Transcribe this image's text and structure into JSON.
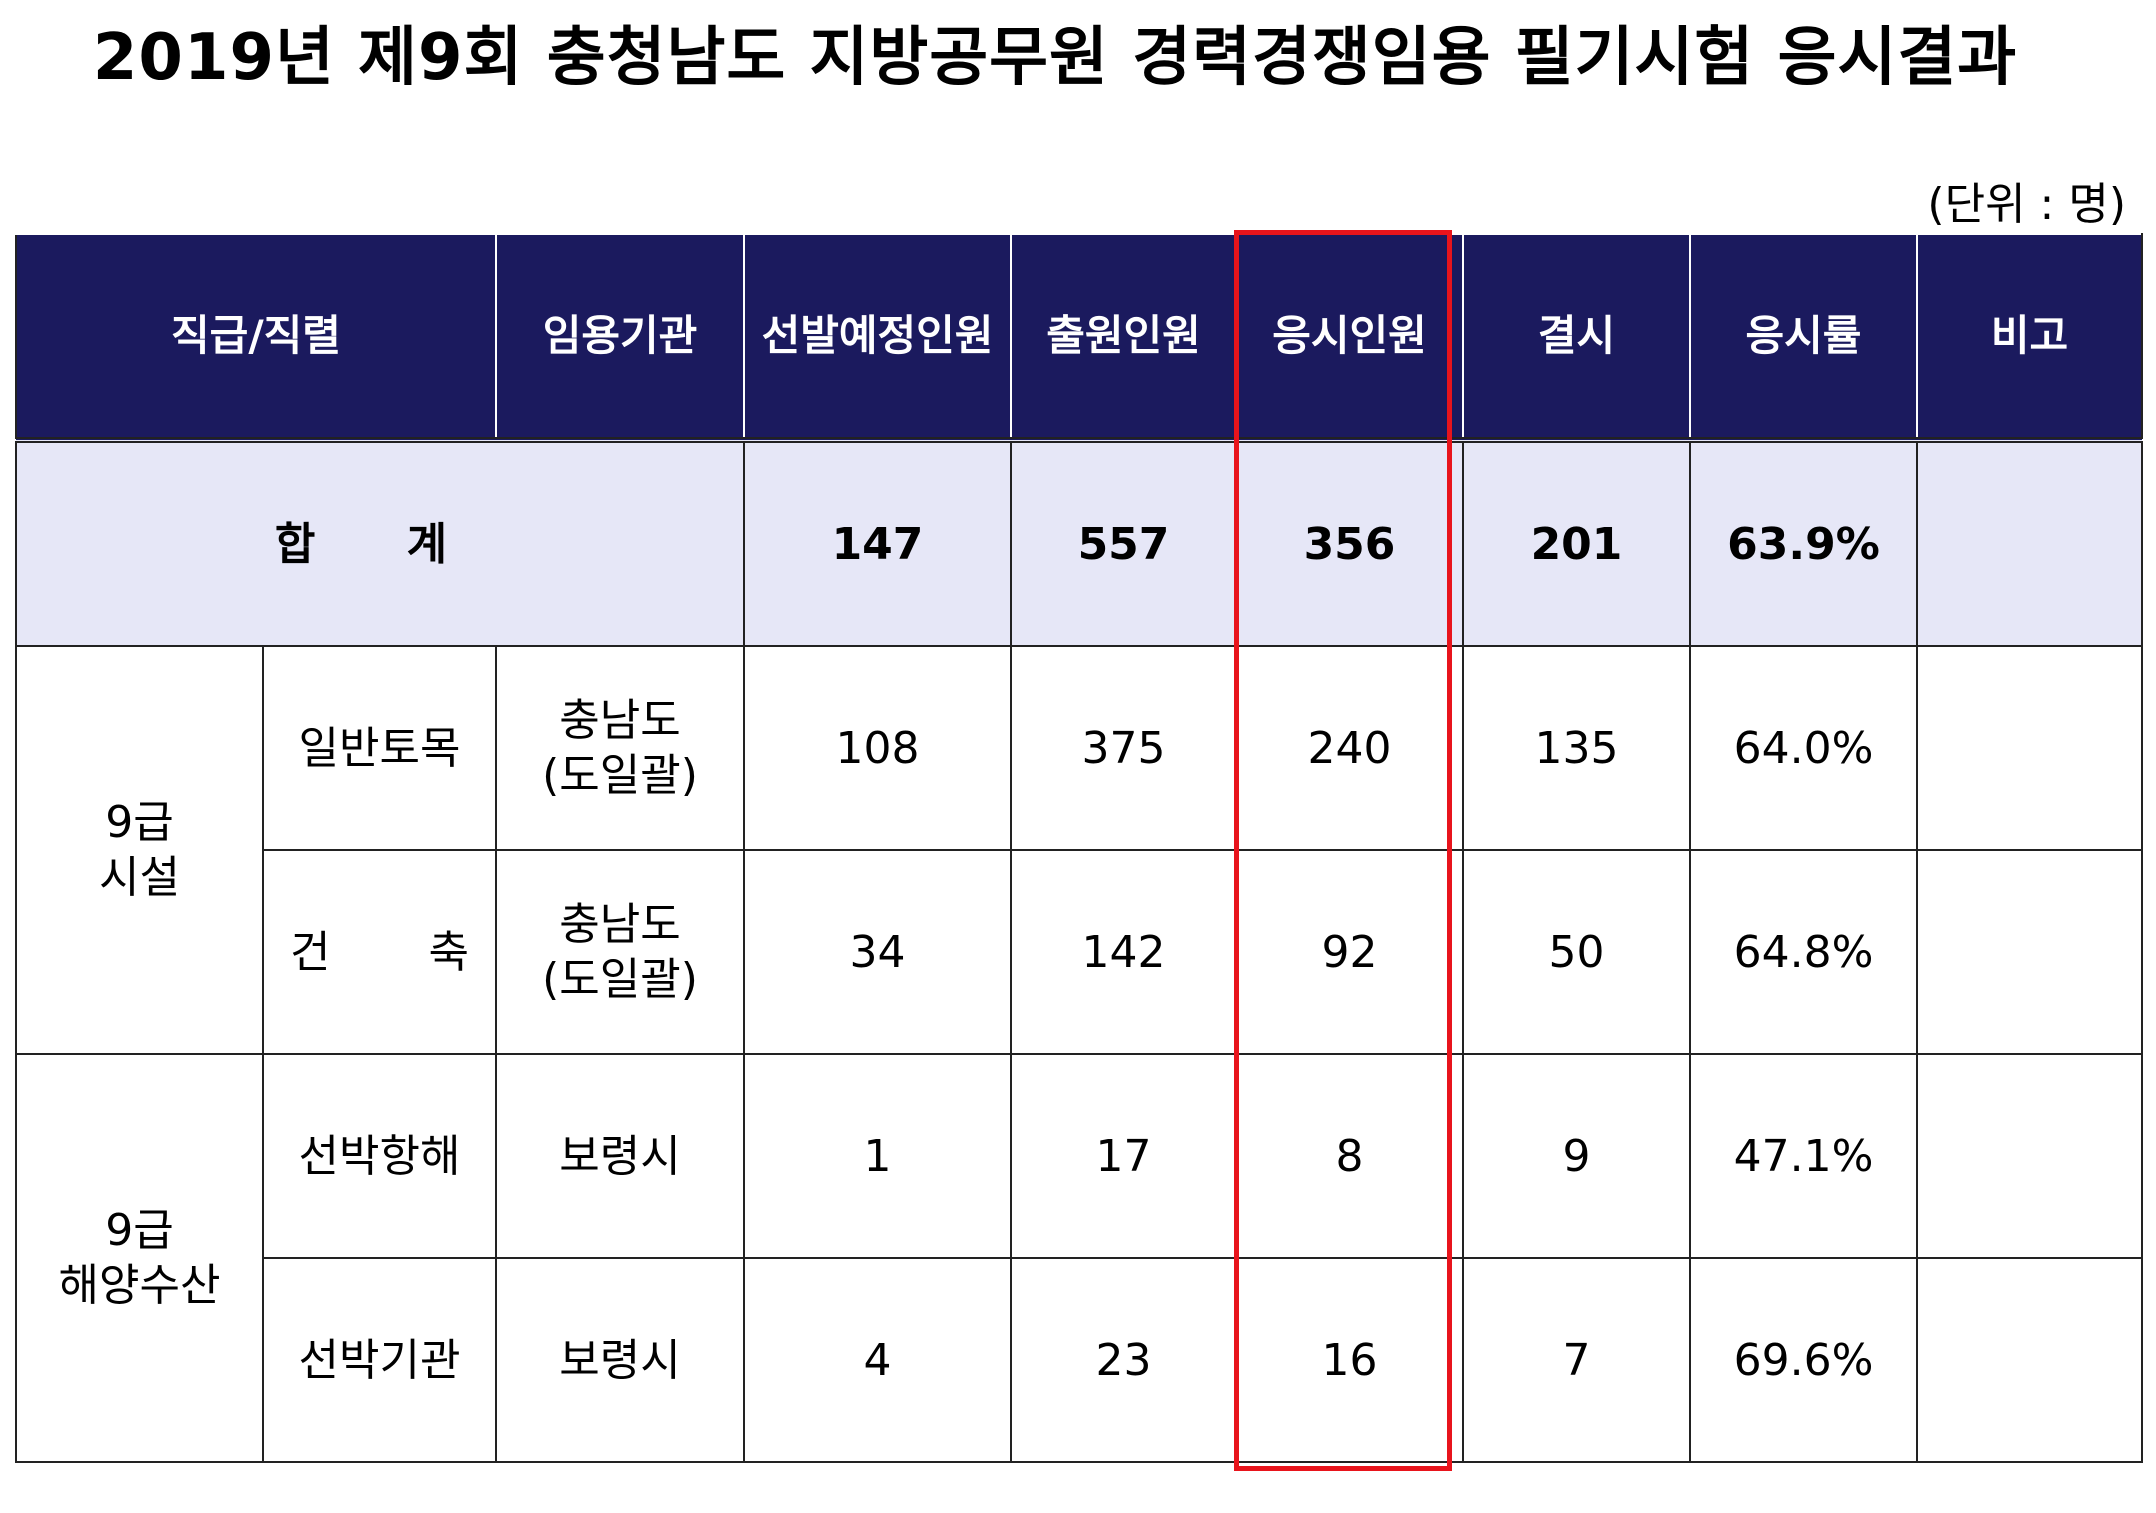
{
  "title": "2019년 제9회 충청남도 지방공무원 경력경쟁임용 필기시험 응시결과",
  "unit": "(단위 : 명)",
  "headers": {
    "position": "직급/직렬",
    "agency": "임용기관",
    "planned": "선발예정인원",
    "applicants": "출원인원",
    "examinees": "응시인원",
    "absent": "결시",
    "rate": "응시률",
    "note": "비고"
  },
  "total": {
    "label": "합 계",
    "planned": "147",
    "applicants": "557",
    "examinees": "356",
    "absent": "201",
    "rate": "63.9%",
    "note": ""
  },
  "groups": [
    {
      "grade": "9급",
      "category": "시설",
      "rows": [
        {
          "series": "일반토목",
          "agency_line1": "충남도",
          "agency_line2": "(도일괄)",
          "planned": "108",
          "applicants": "375",
          "examinees": "240",
          "absent": "135",
          "rate": "64.0%",
          "note": ""
        },
        {
          "series_a": "건",
          "series_b": "축",
          "agency_line1": "충남도",
          "agency_line2": "(도일괄)",
          "planned": "34",
          "applicants": "142",
          "examinees": "92",
          "absent": "50",
          "rate": "64.8%",
          "note": ""
        }
      ]
    },
    {
      "grade": "9급",
      "category": "해양수산",
      "rows": [
        {
          "series": "선박항해",
          "agency": "보령시",
          "planned": "1",
          "applicants": "17",
          "examinees": "8",
          "absent": "9",
          "rate": "47.1%",
          "note": ""
        },
        {
          "series": "선박기관",
          "agency": "보령시",
          "planned": "4",
          "applicants": "23",
          "examinees": "16",
          "absent": "7",
          "rate": "69.6%",
          "note": ""
        }
      ]
    }
  ],
  "colors": {
    "header_bg": "#1b1a5e",
    "total_bg": "#e6e7f7",
    "highlight_border": "#e8141c"
  }
}
